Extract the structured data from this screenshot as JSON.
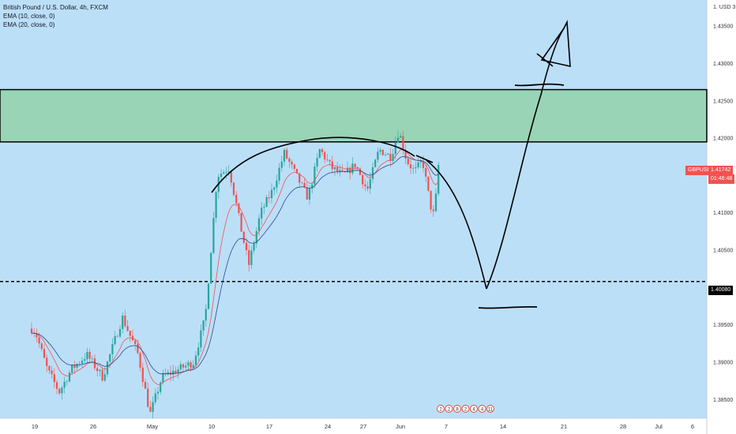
{
  "legend": {
    "symbol_line": "British Pound / U.S. Dollar, 4h, FXCM",
    "ema1": "EMA (10, close, 0)",
    "ema2": "EMA (20, close, 0)"
  },
  "axis": {
    "currency": "1. USD 3",
    "y_ticks": [
      "1.43500",
      "1.43000",
      "1.42500",
      "1.42000",
      "1.41500",
      "1.41000",
      "1.40500",
      "1.40000",
      "1.39500",
      "1.39000",
      "1.38500"
    ],
    "x_ticks": [
      "19",
      "26",
      "May",
      "10",
      "17",
      "24",
      "27",
      "Jun",
      "7",
      "14",
      "21",
      "28",
      "Jul",
      "6"
    ]
  },
  "tags": {
    "symbol": "GBPUSD",
    "price": "1.41742",
    "countdown": "01:46:48",
    "level": "1.40080"
  },
  "events": [
    "2",
    "2",
    "8",
    "2",
    "4",
    "4",
    "11"
  ],
  "colors": {
    "background": "#bcdff8",
    "up": "#26a69a",
    "down": "#ef5350",
    "zone": "#99d4b7",
    "tag": "#f05350",
    "level_tag": "#000000"
  },
  "chart_data": {
    "type": "candlestick",
    "title": "British Pound / U.S. Dollar, 4h, FXCM",
    "ylim": [
      1.3825,
      1.4385
    ],
    "resistance_zone": [
      1.4195,
      1.4265
    ],
    "support_level": 1.4008,
    "last_price": 1.41742,
    "series": [
      {
        "name": "EMA (10, close, 0)",
        "color": "#ef5350"
      },
      {
        "name": "EMA (20, close, 0)",
        "color": "#2a4a8a"
      }
    ]
  }
}
